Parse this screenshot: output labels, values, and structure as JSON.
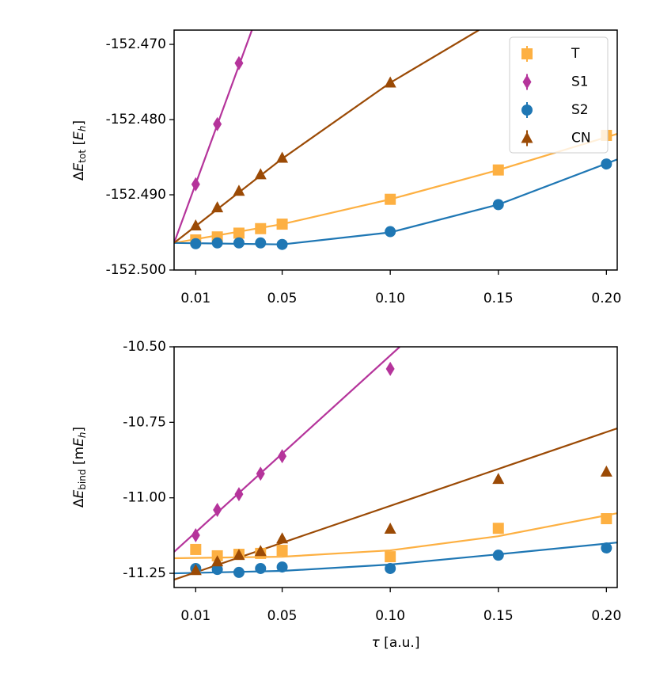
{
  "chart_data": [
    {
      "type": "scatter",
      "ylabel": [
        "Δ",
        "E",
        "tot",
        " [",
        "E",
        "h",
        "]"
      ],
      "xlim": [
        0,
        0.205
      ],
      "ylim": [
        -152.5,
        -152.4681
      ],
      "xticks": [
        0.01,
        0.05,
        {
          "value": 0.1,
          "label": "0.10"
        },
        0.15,
        {
          "value": 0.2,
          "label": "0.20"
        }
      ],
      "yticks": [
        {
          "value": -152.5,
          "label": "-152.500"
        },
        {
          "value": -152.49,
          "label": "-152.490"
        },
        {
          "value": -152.48,
          "label": "-152.480"
        },
        {
          "value": -152.47,
          "label": "-152.470"
        }
      ],
      "legend": "upper right",
      "series": [
        {
          "name": "T",
          "color": "#fdb042",
          "marker": "square",
          "x": [
            0.01,
            0.02,
            0.03,
            0.04,
            0.05,
            0.1,
            0.15,
            0.2
          ],
          "values": [
            -152.496,
            -152.4956,
            -152.4951,
            -152.4945,
            -152.4939,
            -152.4906,
            -152.4867,
            -152.4821
          ],
          "fit": {
            "x": [
              0,
              0.05,
              0.1,
              0.15,
              0.205
            ],
            "values": [
              -152.4964,
              -152.4939,
              -152.4906,
              -152.4867,
              -152.4819
            ]
          }
        },
        {
          "name": "S1",
          "color": "#b5349b",
          "marker": "diamond",
          "x": [
            0.01,
            0.02,
            0.03
          ],
          "values": [
            -152.4886,
            -152.4806,
            -152.4725
          ],
          "fit": {
            "x": [
              0,
              0.036
            ],
            "values": [
              -152.4964,
              -152.4681
            ]
          }
        },
        {
          "name": "S2",
          "color": "#1f77b4",
          "marker": "circle",
          "x": [
            0.01,
            0.02,
            0.03,
            0.04,
            0.05,
            0.1,
            0.15,
            0.2
          ],
          "values": [
            -152.4965,
            -152.4964,
            -152.4964,
            -152.4964,
            -152.4966,
            -152.4949,
            -152.4913,
            -152.4859
          ],
          "fit": {
            "x": [
              0,
              0.05,
              0.1,
              0.15,
              0.205
            ],
            "values": [
              -152.4964,
              -152.4966,
              -152.495,
              -152.4913,
              -152.4853
            ]
          }
        },
        {
          "name": "CN",
          "color": "#9b4a05",
          "marker": "triangle",
          "x": [
            0.01,
            0.02,
            0.03,
            0.04,
            0.05,
            0.1
          ],
          "values": [
            -152.4941,
            -152.4917,
            -152.4895,
            -152.4873,
            -152.4851,
            -152.4751
          ],
          "fit": {
            "x": [
              0,
              0.05,
              0.1,
              0.141
            ],
            "values": [
              -152.4964,
              -152.4852,
              -152.4751,
              -152.4681
            ]
          }
        }
      ]
    },
    {
      "type": "scatter",
      "ylabel": [
        "Δ",
        "E",
        "bind",
        " [m",
        "E",
        "h",
        "]"
      ],
      "xlabel": [
        "τ",
        " [a.u.]"
      ],
      "xlim": [
        0,
        0.205
      ],
      "ylim": [
        -11.297,
        -10.5
      ],
      "xticks": [
        0.01,
        0.05,
        {
          "value": 0.1,
          "label": "0.10"
        },
        0.15,
        {
          "value": 0.2,
          "label": "0.20"
        }
      ],
      "yticks": [
        -11.25,
        {
          "value": -11,
          "label": "-11.00"
        },
        -10.75,
        {
          "value": -10.5,
          "label": "-10.50"
        }
      ],
      "series": [
        {
          "name": "T",
          "color": "#fdb042",
          "marker": "square",
          "x": [
            0.01,
            0.02,
            0.03,
            0.04,
            0.05,
            0.1,
            0.15,
            0.2
          ],
          "values": [
            -11.171,
            -11.192,
            -11.187,
            -11.184,
            -11.174,
            -11.195,
            -11.101,
            -11.069
          ],
          "fit": {
            "x": [
              0,
              0.05,
              0.1,
              0.15,
              0.205
            ],
            "values": [
              -11.2,
              -11.195,
              -11.174,
              -11.127,
              -11.051
            ]
          }
        },
        {
          "name": "S1",
          "color": "#b5349b",
          "marker": "diamond",
          "x": [
            0.01,
            0.02,
            0.03,
            0.04,
            0.05,
            0.1
          ],
          "values": [
            -11.124,
            -11.04,
            -10.988,
            -10.92,
            -10.862,
            -10.573
          ],
          "fit": {
            "x": [
              0,
              0.1044
            ],
            "values": [
              -11.179,
              -10.5
            ]
          }
        },
        {
          "name": "S2",
          "color": "#1f77b4",
          "marker": "circle",
          "x": [
            0.01,
            0.02,
            0.03,
            0.04,
            0.05,
            0.1,
            0.15,
            0.2
          ],
          "values": [
            -11.234,
            -11.237,
            -11.247,
            -11.234,
            -11.229,
            -11.234,
            -11.19,
            -11.166
          ],
          "fit": {
            "x": [
              0,
              0.05,
              0.1,
              0.15,
              0.205
            ],
            "values": [
              -11.25,
              -11.242,
              -11.221,
              -11.187,
              -11.148
            ]
          }
        },
        {
          "name": "CN",
          "color": "#9b4a05",
          "marker": "triangle",
          "x": [
            0.01,
            0.02,
            0.03,
            0.04,
            0.05,
            0.1,
            0.15,
            0.2
          ],
          "values": [
            -11.24,
            -11.211,
            -11.19,
            -11.177,
            -11.135,
            -11.103,
            -10.938,
            -10.914
          ],
          "fit": {
            "x": [
              0,
              0.205
            ],
            "values": [
              -11.271,
              -10.77
            ]
          }
        }
      ]
    }
  ]
}
